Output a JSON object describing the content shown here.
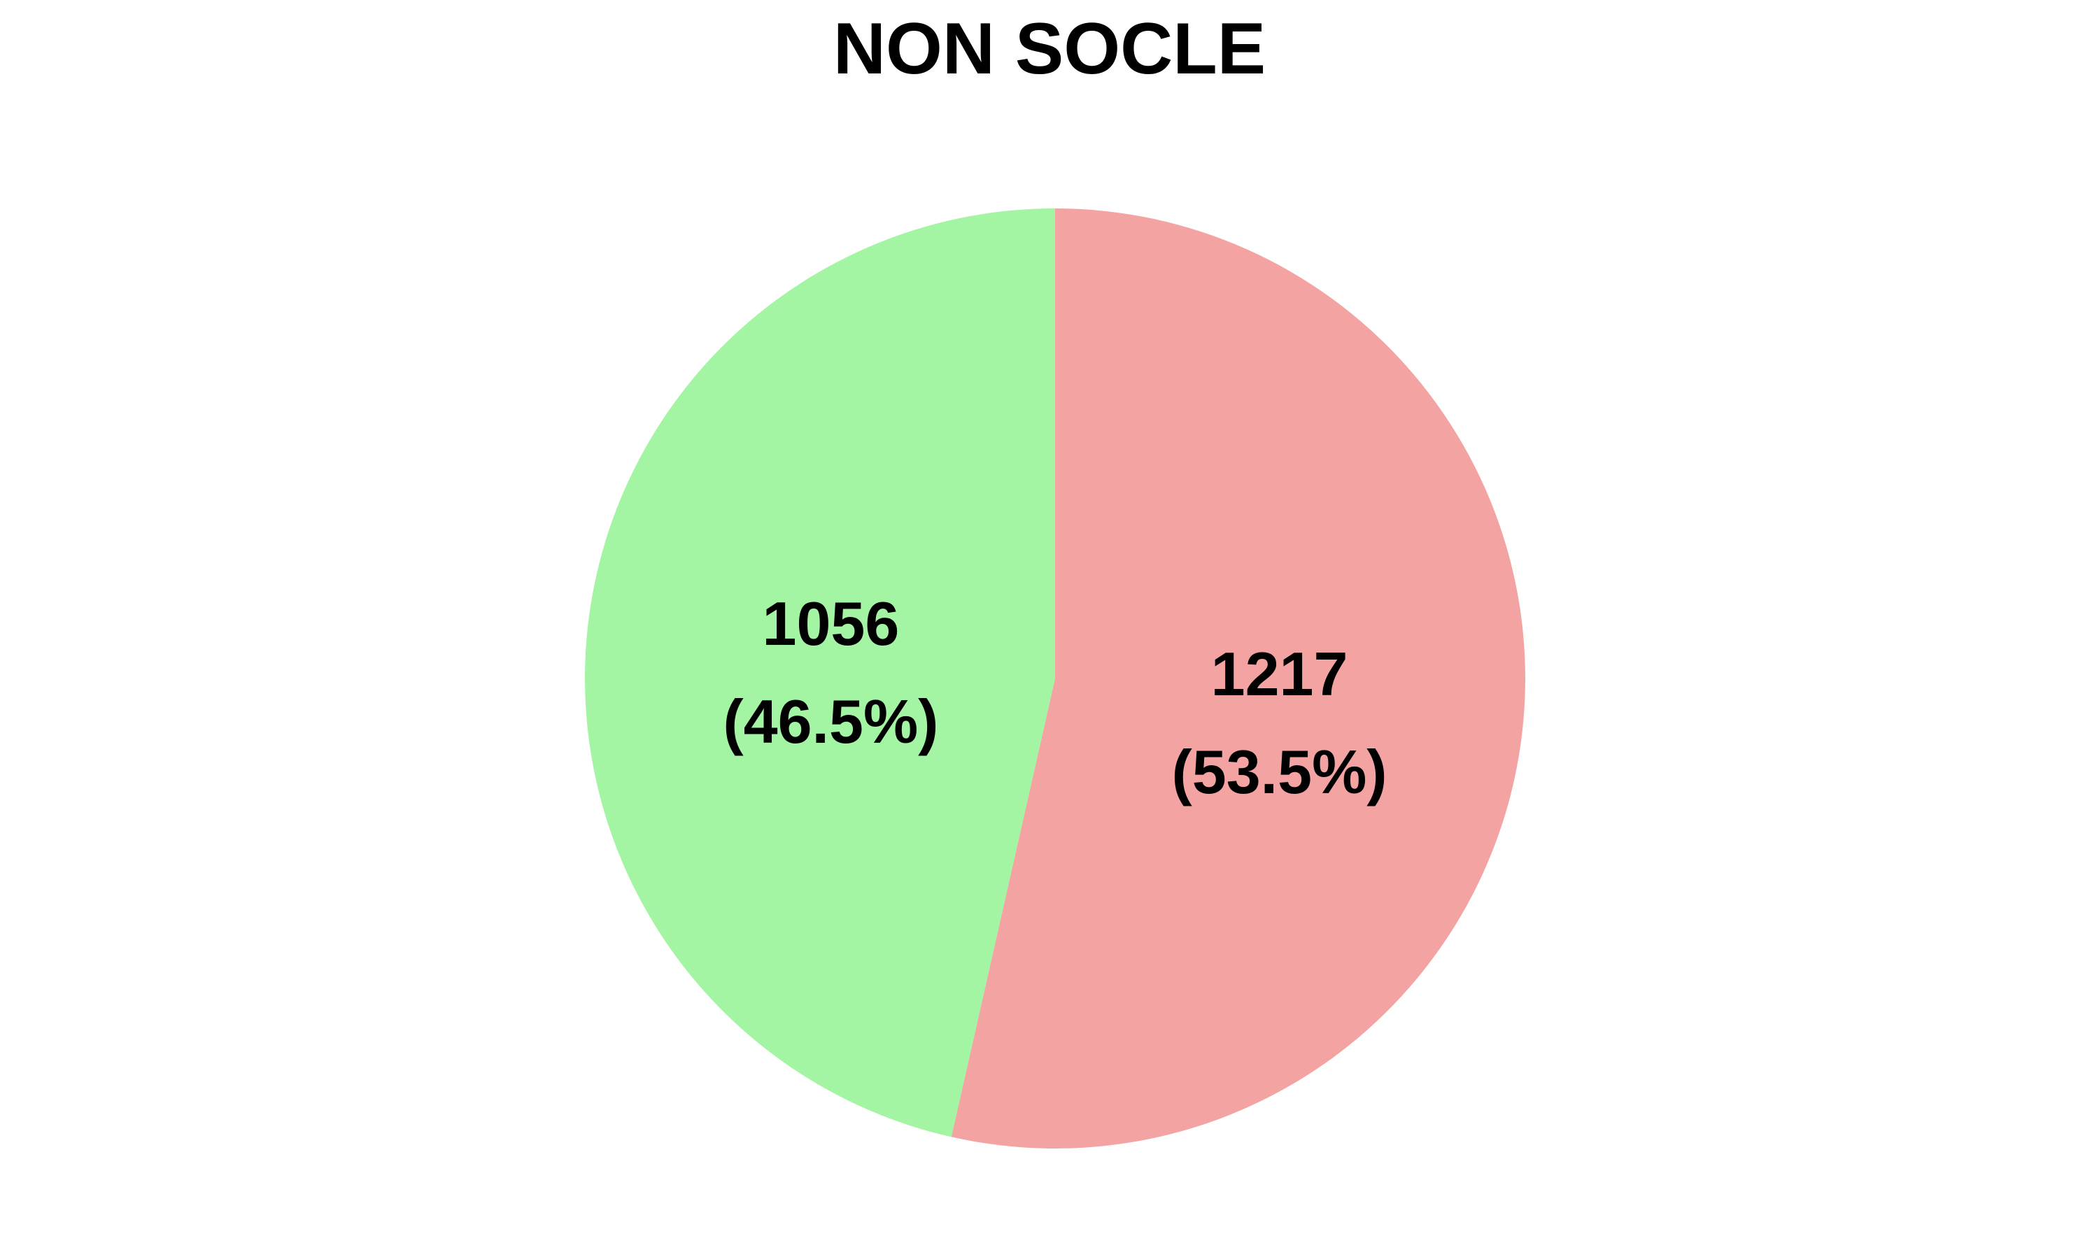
{
  "chart_data": {
    "type": "pie",
    "title": "NON SOCLE",
    "slices": [
      {
        "value": 1217,
        "percent_label": "(53.5%)",
        "value_label": "1217",
        "color": "#f4a3a3"
      },
      {
        "value": 1056,
        "percent_label": "(46.5%)",
        "value_label": "1056",
        "color": "#a3f4a3"
      }
    ],
    "start": "12 o'clock",
    "direction": "clockwise",
    "legend": "none"
  }
}
